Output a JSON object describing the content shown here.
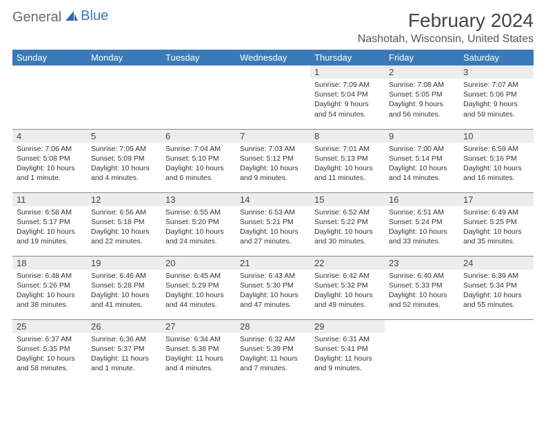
{
  "logo": {
    "part1": "General",
    "part2": "Blue"
  },
  "title": "February 2024",
  "location": "Nashotah, Wisconsin, United States",
  "colors": {
    "header_bg": "#3a7ab8",
    "header_fg": "#ffffff",
    "daynum_bg": "#ededed",
    "border": "#888888",
    "logo_gray": "#6b6b6b",
    "logo_blue": "#3a7ab8"
  },
  "day_headers": [
    "Sunday",
    "Monday",
    "Tuesday",
    "Wednesday",
    "Thursday",
    "Friday",
    "Saturday"
  ],
  "weeks": [
    [
      null,
      null,
      null,
      null,
      {
        "n": "1",
        "sr": "7:09 AM",
        "ss": "5:04 PM",
        "dl": "9 hours and 54 minutes."
      },
      {
        "n": "2",
        "sr": "7:08 AM",
        "ss": "5:05 PM",
        "dl": "9 hours and 56 minutes."
      },
      {
        "n": "3",
        "sr": "7:07 AM",
        "ss": "5:06 PM",
        "dl": "9 hours and 59 minutes."
      }
    ],
    [
      {
        "n": "4",
        "sr": "7:06 AM",
        "ss": "5:08 PM",
        "dl": "10 hours and 1 minute."
      },
      {
        "n": "5",
        "sr": "7:05 AM",
        "ss": "5:09 PM",
        "dl": "10 hours and 4 minutes."
      },
      {
        "n": "6",
        "sr": "7:04 AM",
        "ss": "5:10 PM",
        "dl": "10 hours and 6 minutes."
      },
      {
        "n": "7",
        "sr": "7:03 AM",
        "ss": "5:12 PM",
        "dl": "10 hours and 9 minutes."
      },
      {
        "n": "8",
        "sr": "7:01 AM",
        "ss": "5:13 PM",
        "dl": "10 hours and 11 minutes."
      },
      {
        "n": "9",
        "sr": "7:00 AM",
        "ss": "5:14 PM",
        "dl": "10 hours and 14 minutes."
      },
      {
        "n": "10",
        "sr": "6:59 AM",
        "ss": "5:16 PM",
        "dl": "10 hours and 16 minutes."
      }
    ],
    [
      {
        "n": "11",
        "sr": "6:58 AM",
        "ss": "5:17 PM",
        "dl": "10 hours and 19 minutes."
      },
      {
        "n": "12",
        "sr": "6:56 AM",
        "ss": "5:18 PM",
        "dl": "10 hours and 22 minutes."
      },
      {
        "n": "13",
        "sr": "6:55 AM",
        "ss": "5:20 PM",
        "dl": "10 hours and 24 minutes."
      },
      {
        "n": "14",
        "sr": "6:53 AM",
        "ss": "5:21 PM",
        "dl": "10 hours and 27 minutes."
      },
      {
        "n": "15",
        "sr": "6:52 AM",
        "ss": "5:22 PM",
        "dl": "10 hours and 30 minutes."
      },
      {
        "n": "16",
        "sr": "6:51 AM",
        "ss": "5:24 PM",
        "dl": "10 hours and 33 minutes."
      },
      {
        "n": "17",
        "sr": "6:49 AM",
        "ss": "5:25 PM",
        "dl": "10 hours and 35 minutes."
      }
    ],
    [
      {
        "n": "18",
        "sr": "6:48 AM",
        "ss": "5:26 PM",
        "dl": "10 hours and 38 minutes."
      },
      {
        "n": "19",
        "sr": "6:46 AM",
        "ss": "5:28 PM",
        "dl": "10 hours and 41 minutes."
      },
      {
        "n": "20",
        "sr": "6:45 AM",
        "ss": "5:29 PM",
        "dl": "10 hours and 44 minutes."
      },
      {
        "n": "21",
        "sr": "6:43 AM",
        "ss": "5:30 PM",
        "dl": "10 hours and 47 minutes."
      },
      {
        "n": "22",
        "sr": "6:42 AM",
        "ss": "5:32 PM",
        "dl": "10 hours and 49 minutes."
      },
      {
        "n": "23",
        "sr": "6:40 AM",
        "ss": "5:33 PM",
        "dl": "10 hours and 52 minutes."
      },
      {
        "n": "24",
        "sr": "6:39 AM",
        "ss": "5:34 PM",
        "dl": "10 hours and 55 minutes."
      }
    ],
    [
      {
        "n": "25",
        "sr": "6:37 AM",
        "ss": "5:35 PM",
        "dl": "10 hours and 58 minutes."
      },
      {
        "n": "26",
        "sr": "6:36 AM",
        "ss": "5:37 PM",
        "dl": "11 hours and 1 minute."
      },
      {
        "n": "27",
        "sr": "6:34 AM",
        "ss": "5:38 PM",
        "dl": "11 hours and 4 minutes."
      },
      {
        "n": "28",
        "sr": "6:32 AM",
        "ss": "5:39 PM",
        "dl": "11 hours and 7 minutes."
      },
      {
        "n": "29",
        "sr": "6:31 AM",
        "ss": "5:41 PM",
        "dl": "11 hours and 9 minutes."
      },
      null,
      null
    ]
  ],
  "labels": {
    "sunrise": "Sunrise:",
    "sunset": "Sunset:",
    "daylight": "Daylight:"
  }
}
